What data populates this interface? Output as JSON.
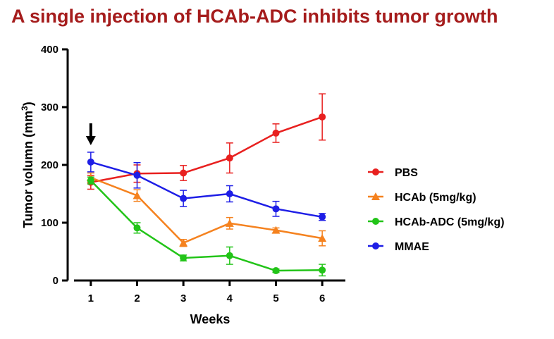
{
  "chart_data": {
    "type": "line",
    "title": "A single injection of HCAb-ADC inhibits tumor growth",
    "xlabel": "Weeks",
    "ylabel_main": "Tumor volumn (mm",
    "ylabel_sup": "3",
    "ylabel_close": ")",
    "x": [
      1,
      2,
      3,
      4,
      5,
      6
    ],
    "xlim": [
      0.5,
      6.5
    ],
    "ylim": [
      0,
      400
    ],
    "yticks": [
      0,
      100,
      200,
      300,
      400
    ],
    "legend_position": "right",
    "arrow_at_x": 1,
    "series": [
      {
        "name": "PBS",
        "color": "#e8201f",
        "marker": "circle",
        "values": [
          170,
          185,
          186,
          212,
          255,
          283
        ],
        "errors": [
          12,
          15,
          13,
          26,
          16,
          40
        ]
      },
      {
        "name": "HCAb  (5mg/kg)",
        "color": "#f5821f",
        "marker": "triangle",
        "values": [
          178,
          147,
          65,
          99,
          87,
          73
        ],
        "errors": [
          8,
          10,
          6,
          10,
          4,
          13
        ]
      },
      {
        "name": "HCAb-ADC (5mg/kg)",
        "color": "#22c418",
        "marker": "circle",
        "values": [
          173,
          91,
          39,
          43,
          17,
          18
        ],
        "errors": [
          6,
          9,
          5,
          15,
          3,
          10
        ]
      },
      {
        "name": "MMAE",
        "color": "#1e1ee6",
        "marker": "circle",
        "values": [
          205,
          182,
          142,
          150,
          124,
          110
        ],
        "errors": [
          17,
          22,
          14,
          14,
          13,
          6
        ]
      }
    ]
  }
}
